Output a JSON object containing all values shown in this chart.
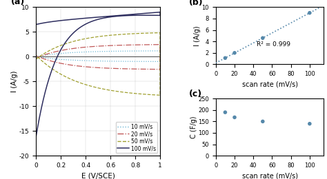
{
  "panel_a": {
    "xlabel": "E (V/SCE)",
    "ylabel": "I (A/g)",
    "xlim": [
      0,
      1.0
    ],
    "ylim": [
      -20,
      10
    ],
    "xticks": [
      0.0,
      0.2,
      0.4,
      0.6,
      0.8,
      1.0
    ],
    "xtick_labels": [
      "0",
      "0.2",
      "0.4",
      "0.6",
      "0.8",
      "1"
    ],
    "yticks": [
      -20,
      -15,
      -10,
      -5,
      0,
      5,
      10
    ],
    "legend_labels": [
      "10 mV/s",
      "20 mV/s",
      "50 mV/s",
      "100 mV/s"
    ],
    "colors": [
      "#6db6d4",
      "#c05858",
      "#a0a030",
      "#2d2d5e"
    ],
    "label_pos": "(a)"
  },
  "panel_b": {
    "xlabel": "scan rate (mV/s)",
    "ylabel": "I (A/g)",
    "xlim": [
      0,
      115
    ],
    "ylim": [
      0,
      10
    ],
    "xticks": [
      0,
      20,
      40,
      60,
      80,
      100
    ],
    "yticks": [
      0,
      2,
      4,
      6,
      8,
      10
    ],
    "scatter_x": [
      10,
      20,
      50,
      100
    ],
    "scatter_y": [
      1.1,
      2.0,
      4.6,
      9.0
    ],
    "annotation": "R² = 0.999",
    "color": "#5588aa",
    "label_pos": "(b)"
  },
  "panel_c": {
    "xlabel": "scan rate (mV/s)",
    "ylabel": "C (F/g)",
    "xlim": [
      0,
      115
    ],
    "ylim": [
      0,
      250
    ],
    "xticks": [
      0,
      20,
      40,
      60,
      80,
      100
    ],
    "yticks": [
      0,
      50,
      100,
      150,
      200,
      250
    ],
    "scatter_x": [
      10,
      20,
      50,
      100
    ],
    "scatter_y": [
      190,
      168,
      150,
      140
    ],
    "color": "#5588aa",
    "label_pos": "(c)"
  }
}
